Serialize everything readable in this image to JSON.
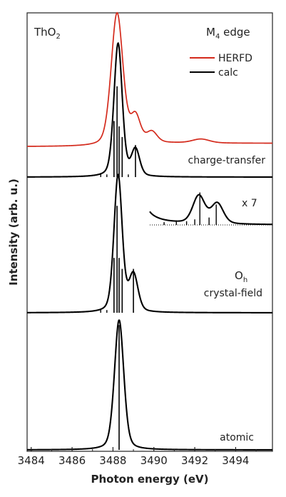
{
  "chart_data": {
    "type": "line",
    "x_range": [
      3483.8,
      3495.8
    ],
    "xticks": [
      "3484",
      "3486",
      "3488",
      "3490",
      "3492",
      "3494"
    ],
    "xlabel": "Photon energy (eV)",
    "ylabel": "Intensity (arb. u.)",
    "grid": false,
    "labels": {
      "compound_main": "ThO",
      "compound_sub": "2",
      "edge_main": "M",
      "edge_sub": "4",
      "edge_rest": " edge",
      "panel_ct": "charge-transfer",
      "panel_magnify": "x 7",
      "panel_oh_main": "O",
      "panel_oh_sub": "h",
      "panel_cf": "crystal-field",
      "panel_atomic": "atomic"
    },
    "legend": {
      "placement": "top-right",
      "entries": [
        {
          "name": "HERFD",
          "color": "#d42a1c"
        },
        {
          "name": "calc",
          "color": "#000000"
        }
      ]
    },
    "series": [
      {
        "name": "HERFD",
        "panel": "charge-transfer",
        "color": "#d42a1c",
        "peaks": [
          [
            3488.2,
            1.0,
            0.34,
            0.3
          ],
          [
            3489.1,
            0.2,
            0.28,
            0.3
          ],
          [
            3489.9,
            0.08,
            0.3,
            0.3
          ],
          [
            3492.3,
            0.03,
            0.5,
            0.35
          ]
        ],
        "baseline_left": 0.02,
        "baseline_right": 0.045,
        "edge_center": 3488.6,
        "edge_width": 0.5
      },
      {
        "name": "calc",
        "panel": "charge-transfer",
        "color": "#000000",
        "peaks": [
          [
            3488.25,
            1.0,
            0.24,
            0.32
          ],
          [
            3489.1,
            0.2,
            0.24,
            0.3
          ]
        ],
        "baseline_left": 0,
        "baseline_right": 0,
        "edge_center": 3488.3,
        "edge_width": 0.3
      },
      {
        "name": "calc",
        "panel": "charge-transfer-x7",
        "color": "#000000",
        "peaks": [
          [
            3488.25,
            1.0,
            0.24,
            0.32
          ],
          [
            3489.1,
            0.2,
            0.24,
            0.3
          ],
          [
            3492.2,
            0.03,
            0.35,
            0.3
          ],
          [
            3493.1,
            0.022,
            0.35,
            0.3
          ]
        ],
        "baseline_left": 0,
        "baseline_right": 0,
        "edge_center": 3488.3,
        "edge_width": 0.3
      },
      {
        "name": "calc",
        "panel": "crystal-field",
        "color": "#000000",
        "peaks": [
          [
            3488.25,
            1.0,
            0.24,
            0.32
          ],
          [
            3489.0,
            0.27,
            0.26,
            0.3
          ]
        ],
        "baseline_left": 0,
        "baseline_right": 0,
        "edge_center": 3488.3,
        "edge_width": 0.3
      },
      {
        "name": "calc",
        "panel": "atomic",
        "color": "#000000",
        "peaks": [
          [
            3488.3,
            1.0,
            0.27,
            0.32
          ]
        ],
        "baseline_left": 0,
        "baseline_right": 0,
        "edge_center": 3488.3,
        "edge_width": 0.3
      }
    ],
    "sticks": {
      "charge-transfer": [
        [
          3488.05,
          0.42
        ],
        [
          3488.2,
          0.68
        ],
        [
          3488.3,
          0.38
        ],
        [
          3488.45,
          0.3
        ],
        [
          3489.1,
          0.24
        ],
        [
          3487.4,
          0.03
        ],
        [
          3487.7,
          0.02
        ],
        [
          3488.75,
          0.02
        ]
      ],
      "charge-transfer-x7": [
        [
          3492.25,
          0.035
        ],
        [
          3493.05,
          0.022
        ],
        [
          3492.7,
          0.008
        ],
        [
          3491.1,
          0.004
        ],
        [
          3491.6,
          0.004
        ],
        [
          3492.0,
          0.006
        ],
        [
          3490.5,
          0.003
        ]
      ],
      "crystal-field": [
        [
          3488.05,
          0.4
        ],
        [
          3488.2,
          0.78
        ],
        [
          3488.3,
          0.4
        ],
        [
          3488.45,
          0.32
        ],
        [
          3489.0,
          0.32
        ],
        [
          3487.4,
          0.03
        ],
        [
          3487.7,
          0.02
        ]
      ],
      "atomic": [
        [
          3488.3,
          0.96
        ]
      ]
    }
  }
}
